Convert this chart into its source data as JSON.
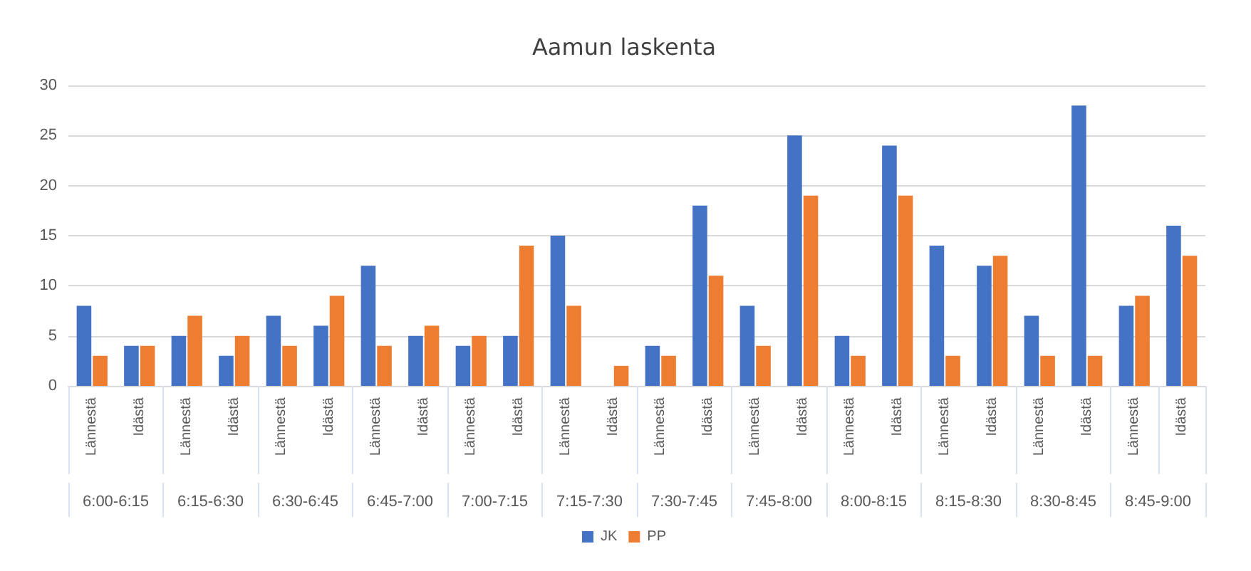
{
  "chart_data": {
    "type": "bar",
    "title": "Aamun laskenta",
    "categories": [
      "Lännestä",
      "Idästä",
      "Lännestä",
      "Idästä",
      "Lännestä",
      "Idästä",
      "Lännestä",
      "Idästä",
      "Lännestä",
      "Idästä",
      "Lännestä",
      "Idästä",
      "Lännestä",
      "Idästä",
      "Lännestä",
      "Idästä",
      "Lännestä",
      "Idästä",
      "Lännestä",
      "Idästä",
      "Lännestä",
      "Idästä",
      "Lännestä",
      "Idästä"
    ],
    "series": [
      {
        "name": "JK",
        "color": "#4472c4",
        "values": [
          8,
          4,
          5,
          3,
          7,
          6,
          12,
          5,
          4,
          5,
          15,
          null,
          4,
          18,
          8,
          25,
          5,
          24,
          14,
          12,
          7,
          28,
          8,
          16
        ]
      },
      {
        "name": "PP",
        "color": "#ed7d31",
        "values": [
          3,
          4,
          7,
          5,
          4,
          9,
          4,
          6,
          5,
          14,
          8,
          2,
          3,
          11,
          4,
          19,
          3,
          19,
          3,
          13,
          3,
          3,
          9,
          13
        ]
      }
    ],
    "annotations": [
      "6:00-6:15",
      "6:15-6:30",
      "6:30-6:45",
      "6:45-7:00",
      "7:00-7:15",
      "7:15-7:30",
      "7:30-7:45",
      "7:45-8:00",
      "8:00-8:15",
      "8:15-8:30",
      "8:30-8:45",
      "8:45-9:00"
    ],
    "ylim": [
      0,
      30
    ],
    "yticks": [
      0,
      5,
      10,
      15,
      20,
      25,
      30
    ],
    "grid": "y",
    "legend": "bottom"
  }
}
